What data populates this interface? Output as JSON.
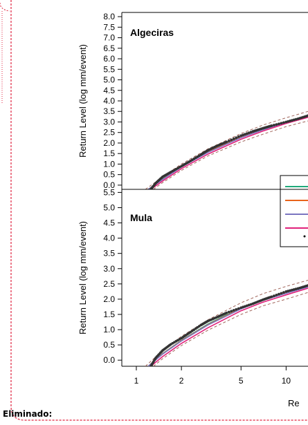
{
  "note_label": "Eliminado:",
  "colors": {
    "frame": "#e0203c",
    "green": "#1fa97a",
    "orange": "#e8641a",
    "purple": "#7a74c0",
    "magenta": "#e0207a",
    "black": "#333333",
    "dashed": "#a0645a"
  },
  "chart_data": [
    {
      "type": "line",
      "title": "Algeciras",
      "ylabel": "Return Level (log mm/event)",
      "xlabel": "Re",
      "xscale": "log",
      "xlim": [
        0.8,
        14
      ],
      "ylim": [
        -0.2,
        8.2
      ],
      "yticks": [
        "0.0",
        "0.5",
        "1.0",
        "1.5",
        "2.0",
        "2.5",
        "3.0",
        "3.5",
        "4.0",
        "4.5",
        "5.0",
        "5.5",
        "6.0",
        "6.5",
        "7.0",
        "7.5",
        "8.0"
      ],
      "legend_position": "right",
      "series": [
        {
          "color": "green",
          "style": "solid",
          "x": [
            1.2,
            1.5,
            2,
            3,
            5,
            7,
            10,
            14
          ],
          "y": [
            -0.2,
            0.3,
            0.9,
            1.6,
            2.3,
            2.68,
            3.02,
            3.3
          ]
        },
        {
          "color": "orange",
          "style": "solid",
          "x": [
            1.2,
            1.5,
            2,
            3,
            5,
            7,
            10,
            14
          ],
          "y": [
            -0.2,
            0.28,
            0.88,
            1.58,
            2.28,
            2.66,
            3.0,
            3.28
          ]
        },
        {
          "color": "purple",
          "style": "solid",
          "x": [
            1.2,
            1.5,
            2,
            3,
            5,
            7,
            10,
            14
          ],
          "y": [
            -0.2,
            0.27,
            0.86,
            1.55,
            2.25,
            2.63,
            2.98,
            3.25
          ]
        },
        {
          "color": "magenta",
          "style": "solid",
          "x": [
            1.25,
            1.5,
            2,
            3,
            5,
            7,
            10,
            14
          ],
          "y": [
            -0.2,
            0.2,
            0.78,
            1.47,
            2.18,
            2.57,
            2.93,
            3.22
          ]
        },
        {
          "color": "dashed",
          "style": "dashed",
          "x": [
            1.15,
            1.5,
            2,
            3,
            5,
            7,
            10,
            14
          ],
          "y": [
            -0.2,
            0.4,
            1.0,
            1.72,
            2.45,
            2.85,
            3.2,
            3.5
          ]
        },
        {
          "color": "dashed",
          "style": "dashed",
          "x": [
            1.3,
            1.5,
            2,
            3,
            5,
            7,
            10,
            14
          ],
          "y": [
            -0.2,
            0.12,
            0.7,
            1.38,
            2.05,
            2.42,
            2.78,
            3.05
          ]
        },
        {
          "color": "black",
          "style": "points",
          "x": [
            1.25,
            1.35,
            1.5,
            1.7,
            2,
            2.3,
            2.7,
            3,
            3.5,
            4,
            5,
            6,
            7,
            8,
            10,
            12,
            14
          ],
          "y": [
            -0.2,
            0.1,
            0.4,
            0.62,
            0.9,
            1.15,
            1.45,
            1.65,
            1.88,
            2.05,
            2.35,
            2.55,
            2.7,
            2.82,
            3.0,
            3.15,
            3.3
          ]
        }
      ]
    },
    {
      "type": "line",
      "title": "Mula",
      "ylabel": "Return Level (log mm/event)",
      "xlabel": "Re",
      "xscale": "log",
      "xlim": [
        0.8,
        14
      ],
      "ylim": [
        -0.2,
        5.6
      ],
      "yticks": [
        "0.0",
        "0.5",
        "1.0",
        "1.5",
        "2.0",
        "2.5",
        "3.0",
        "3.5",
        "4.0",
        "4.5",
        "5.0",
        "5.5"
      ],
      "xticks": [
        1,
        2,
        5,
        10
      ],
      "xtick_labels": [
        "1",
        "2",
        "5",
        "10"
      ],
      "series": [
        {
          "color": "green",
          "style": "solid",
          "x": [
            1.2,
            1.5,
            2,
            3,
            5,
            7,
            10,
            14
          ],
          "y": [
            -0.2,
            0.22,
            0.65,
            1.18,
            1.72,
            2.0,
            2.22,
            2.42
          ]
        },
        {
          "color": "orange",
          "style": "solid",
          "x": [
            1.2,
            1.5,
            2,
            3,
            5,
            7,
            10,
            14
          ],
          "y": [
            -0.2,
            0.21,
            0.64,
            1.16,
            1.7,
            1.98,
            2.21,
            2.41
          ]
        },
        {
          "color": "purple",
          "style": "solid",
          "x": [
            1.2,
            1.5,
            2,
            3,
            5,
            7,
            10,
            14
          ],
          "y": [
            -0.2,
            0.2,
            0.63,
            1.15,
            1.68,
            1.96,
            2.19,
            2.4
          ]
        },
        {
          "color": "magenta",
          "style": "solid",
          "x": [
            1.25,
            1.5,
            2,
            3,
            5,
            7,
            10,
            14
          ],
          "y": [
            -0.2,
            0.12,
            0.55,
            1.06,
            1.62,
            1.9,
            2.14,
            2.36
          ]
        },
        {
          "color": "dashed",
          "style": "dashed",
          "x": [
            1.15,
            1.5,
            2,
            3,
            5,
            7,
            10,
            14
          ],
          "y": [
            -0.2,
            0.32,
            0.78,
            1.32,
            1.88,
            2.18,
            2.42,
            2.62
          ]
        },
        {
          "color": "dashed",
          "style": "dashed",
          "x": [
            1.3,
            1.5,
            2,
            3,
            5,
            7,
            10,
            14
          ],
          "y": [
            -0.2,
            0.05,
            0.48,
            0.98,
            1.5,
            1.78,
            2.0,
            2.22
          ]
        },
        {
          "color": "black",
          "style": "points",
          "x": [
            1.25,
            1.35,
            1.5,
            1.7,
            2,
            2.3,
            2.7,
            3,
            3.5,
            4,
            5,
            6,
            7,
            8,
            10,
            12,
            14
          ],
          "y": [
            -0.2,
            0.08,
            0.32,
            0.52,
            0.72,
            0.92,
            1.15,
            1.28,
            1.42,
            1.55,
            1.72,
            1.85,
            1.98,
            2.08,
            2.25,
            2.35,
            2.45
          ]
        }
      ]
    }
  ]
}
